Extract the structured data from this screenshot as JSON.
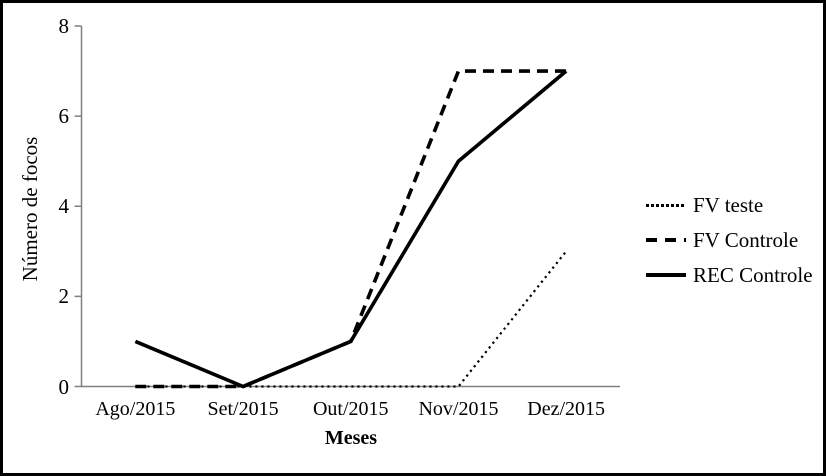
{
  "figure": {
    "background": "#ffffff",
    "border_color": "#000000",
    "axis_color": "#808080",
    "series_color": "#000000"
  },
  "chart_data": {
    "type": "line",
    "title": "",
    "xlabel": "Meses",
    "ylabel": "Número de focos",
    "categories": [
      "Ago/2015",
      "Set/2015",
      "Out/2015",
      "Nov/2015",
      "Dez/2015"
    ],
    "yticks": [
      "0",
      "2",
      "4",
      "6",
      "8"
    ],
    "ylim": [
      0,
      8
    ],
    "grid": false,
    "legend_position": "right",
    "series": [
      {
        "name": "FV teste",
        "style": "dotted",
        "values": [
          0,
          0,
          0,
          0,
          3
        ]
      },
      {
        "name": "FV Controle",
        "style": "dashed",
        "values": [
          0,
          0,
          1,
          7,
          7
        ]
      },
      {
        "name": "REC Controle",
        "style": "solid",
        "values": [
          1,
          0,
          1,
          5,
          7
        ]
      }
    ]
  }
}
